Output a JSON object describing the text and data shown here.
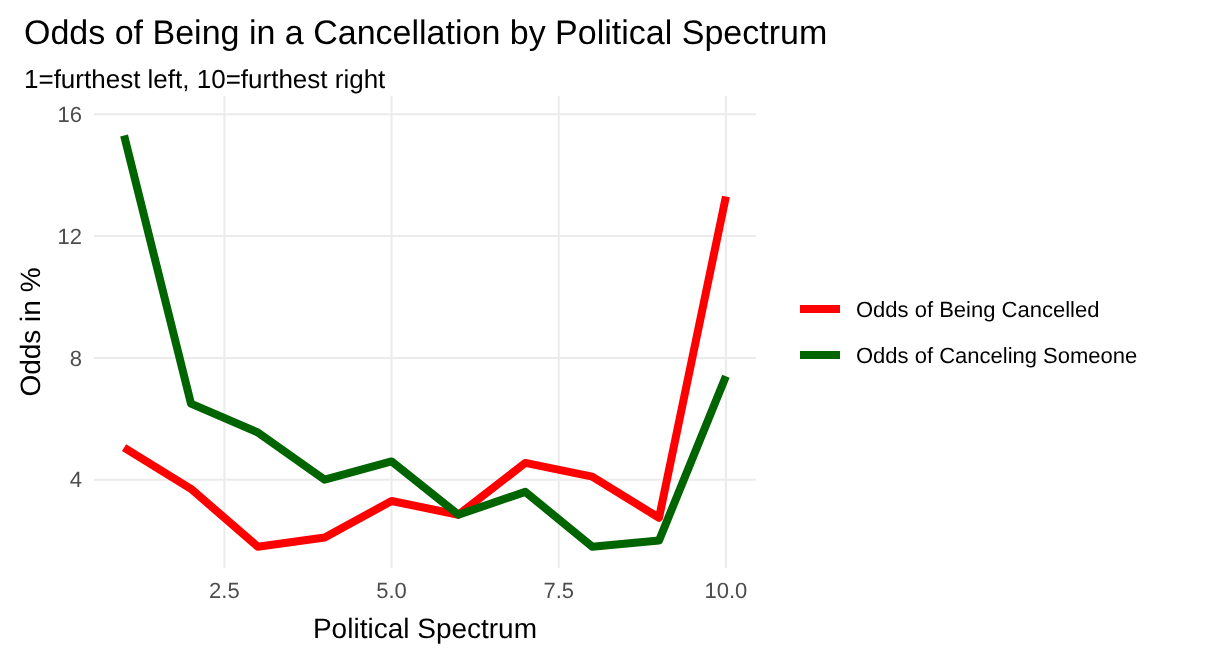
{
  "chart_data": {
    "type": "line",
    "title": "Odds of Being in a Cancellation by Political Spectrum",
    "subtitle": "1=furthest left, 10=furthest right",
    "xlabel": "Political Spectrum",
    "ylabel": "Odds in %",
    "x": [
      1,
      2,
      3,
      4,
      5,
      6,
      7,
      8,
      9,
      10
    ],
    "series": [
      {
        "name": "Odds of Being Cancelled",
        "color": "#ff0000",
        "values": [
          5.05,
          3.7,
          1.8,
          2.1,
          3.3,
          2.85,
          4.55,
          4.1,
          2.75,
          13.3
        ]
      },
      {
        "name": "Odds of Canceling Someone",
        "color": "#006400",
        "values": [
          15.3,
          6.5,
          5.55,
          4.0,
          4.6,
          2.85,
          3.6,
          1.8,
          2.0,
          7.4
        ]
      }
    ],
    "xlim": [
      0.55,
      10.45
    ],
    "xticks": [
      {
        "value": 2.5,
        "label": "2.5"
      },
      {
        "value": 5,
        "label": "5.0"
      },
      {
        "value": 7.5,
        "label": "7.5"
      },
      {
        "value": 10,
        "label": "10.0"
      }
    ],
    "ylim": [
      1.1,
      16.6
    ],
    "yticks": [
      4,
      8,
      12,
      16
    ],
    "grid": true,
    "legend": "right",
    "line_style": "solid",
    "marker": "none"
  }
}
